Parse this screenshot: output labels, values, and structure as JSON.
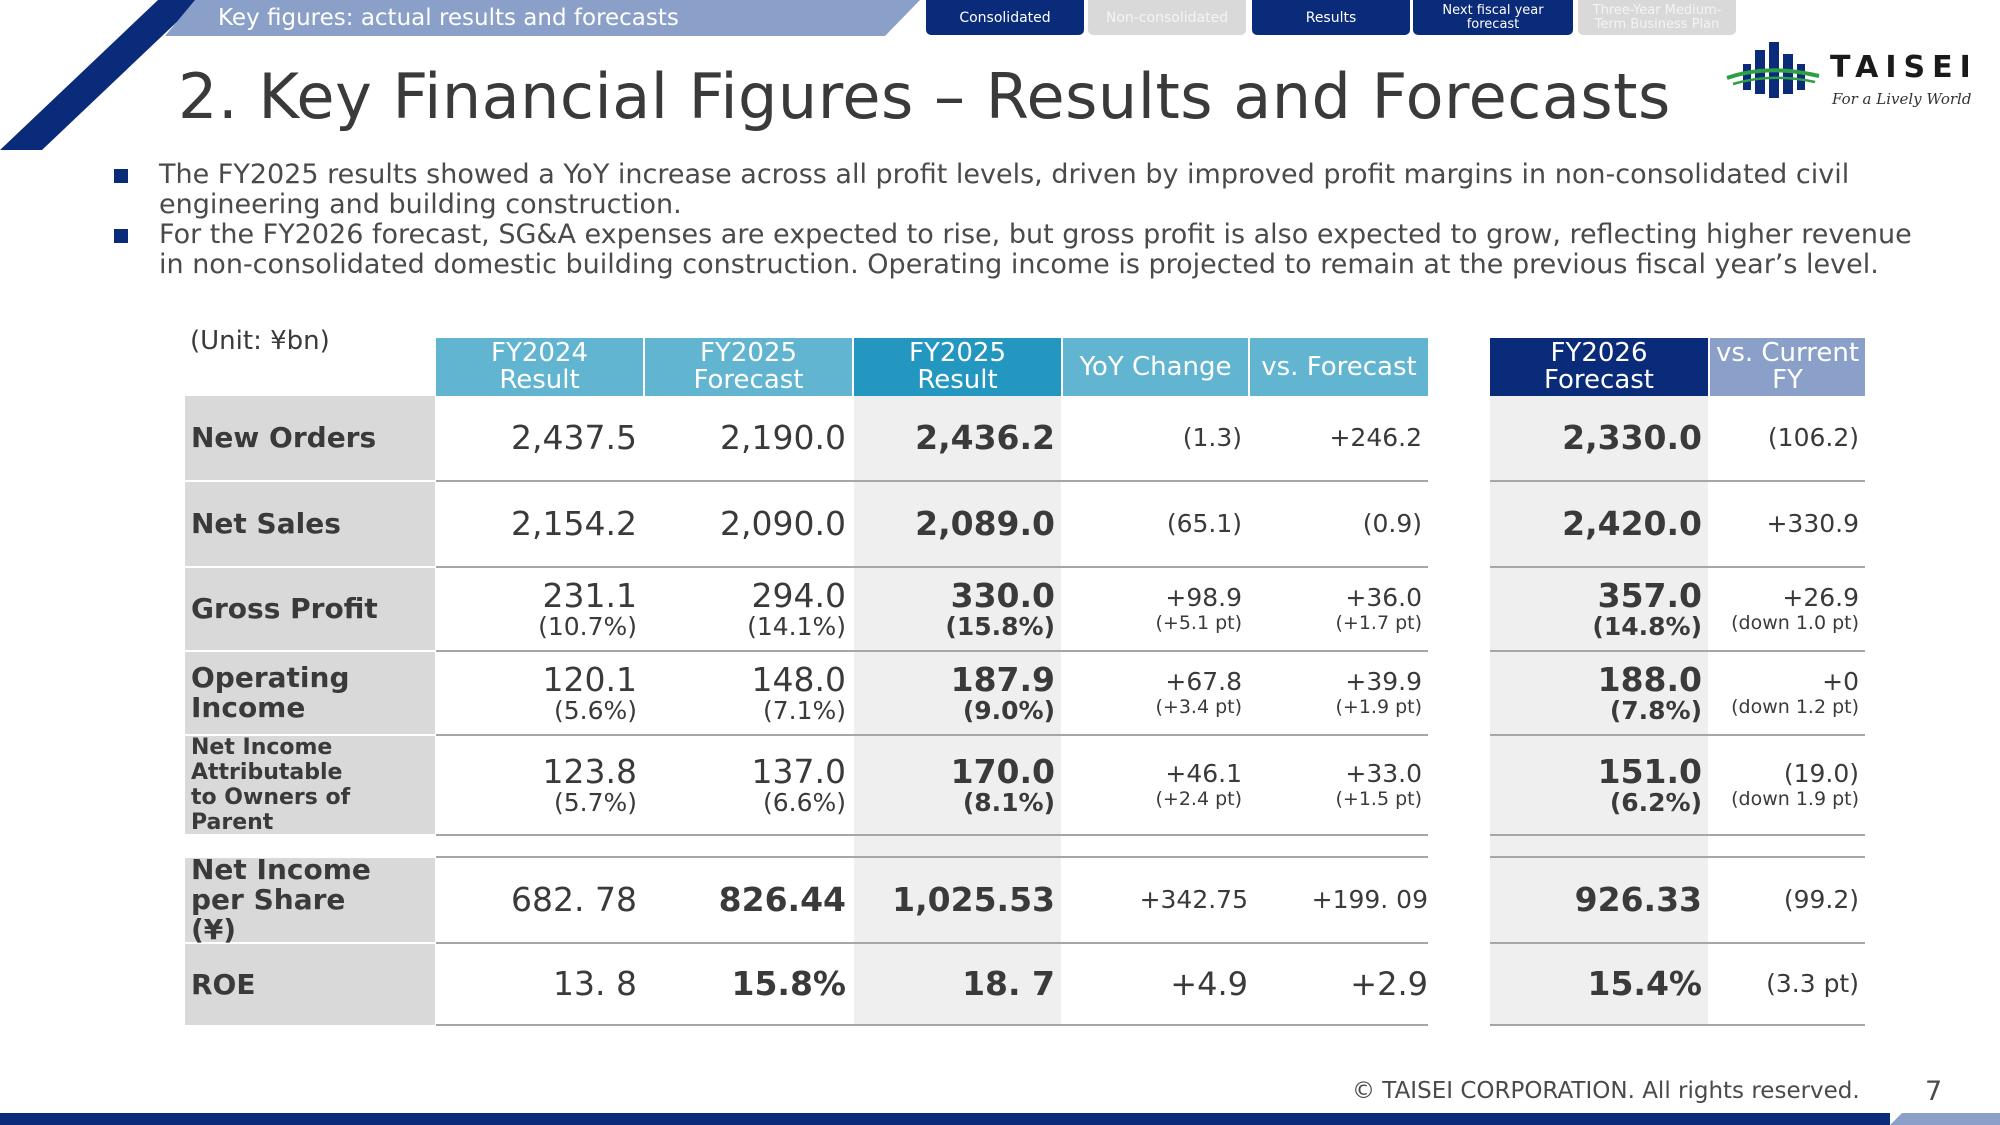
{
  "header": {
    "section_label": "Key figures: actual results and forecasts",
    "tabs": [
      {
        "label": "Consolidated",
        "active": true
      },
      {
        "label": "Non-consolidated",
        "active": false
      },
      {
        "label": "Results",
        "active": true
      },
      {
        "label": "Next fiscal year forecast",
        "active": true
      },
      {
        "label": "Three-Year Medium-Term Business Plan",
        "active": false
      }
    ]
  },
  "title": "2. Key Financial Figures – Results and Forecasts",
  "logo": {
    "word": "TAISEI",
    "tagline": "For a Lively World"
  },
  "bullets": [
    "The FY2025 results showed a YoY increase across all profit levels, driven by improved profit margins in non-consolidated civil engineering and building construction.",
    "For the FY2026 forecast, SG&A expenses are expected to rise, but gross profit is also expected to grow, reflecting higher revenue in non-consolidated domestic building construction. Operating income is projected to remain at the previous fiscal year’s level."
  ],
  "table": {
    "unit": "(Unit: ¥bn)",
    "columns": [
      {
        "line1": "FY2024",
        "line2": "Result"
      },
      {
        "line1": "FY2025",
        "line2": "Forecast"
      },
      {
        "line1": "FY2025",
        "line2": "Result"
      },
      {
        "line1": "YoY Change",
        "line2": ""
      },
      {
        "line1": "vs. Forecast",
        "line2": ""
      },
      {
        "line1": "FY2026",
        "line2": "Forecast"
      },
      {
        "line1": "vs. Current",
        "line2": "FY"
      }
    ],
    "rows": [
      {
        "label": "New Orders",
        "cells": [
          [
            "2,437.5",
            ""
          ],
          [
            "2,190.0",
            ""
          ],
          [
            "2,436.2",
            ""
          ],
          [
            "(1.3)",
            ""
          ],
          [
            "+246.2",
            ""
          ],
          [
            "2,330.0",
            ""
          ],
          [
            "(106.2)",
            ""
          ]
        ]
      },
      {
        "label": "Net Sales",
        "cells": [
          [
            "2,154.2",
            ""
          ],
          [
            "2,090.0",
            ""
          ],
          [
            "2,089.0",
            ""
          ],
          [
            "(65.1)",
            ""
          ],
          [
            "(0.9)",
            ""
          ],
          [
            "2,420.0",
            ""
          ],
          [
            "+330.9",
            ""
          ]
        ]
      },
      {
        "label": "Gross Profit",
        "cells": [
          [
            "231.1",
            "(10.7%)"
          ],
          [
            "294.0",
            "(14.1%)"
          ],
          [
            "330.0",
            "(15.8%)"
          ],
          [
            "+98.9",
            "(+5.1 pt)"
          ],
          [
            "+36.0",
            "(+1.7 pt)"
          ],
          [
            "357.0",
            "(14.8%)"
          ],
          [
            "+26.9",
            "(down 1.0 pt)"
          ]
        ]
      },
      {
        "label": "Operating Income",
        "cells": [
          [
            "120.1",
            "(5.6%)"
          ],
          [
            "148.0",
            "(7.1%)"
          ],
          [
            "187.9",
            "(9.0%)"
          ],
          [
            "+67.8",
            "(+3.4 pt)"
          ],
          [
            "+39.9",
            "(+1.9 pt)"
          ],
          [
            "188.0",
            "(7.8%)"
          ],
          [
            "+0",
            "(down 1.2 pt)"
          ]
        ]
      },
      {
        "label": "Net Income Attributable to Owners of Parent",
        "cells": [
          [
            "123.8",
            "(5.7%)"
          ],
          [
            "137.0",
            "(6.6%)"
          ],
          [
            "170.0",
            "(8.1%)"
          ],
          [
            "+46.1",
            "(+2.4 pt)"
          ],
          [
            "+33.0",
            "(+1.5 pt)"
          ],
          [
            "151.0",
            "(6.2%)"
          ],
          [
            "(19.0)",
            "(down 1.9 pt)"
          ]
        ]
      },
      {
        "label": "Net Income per Share (¥)",
        "cells": [
          [
            "682. 78",
            ""
          ],
          [
            "826.44",
            ""
          ],
          [
            "1,025.53",
            ""
          ],
          [
            "+342.75",
            ""
          ],
          [
            "+199. 09",
            ""
          ],
          [
            "926.33",
            ""
          ],
          [
            "(99.2)",
            ""
          ]
        ]
      },
      {
        "label": "ROE",
        "cells": [
          [
            "13. 8",
            ""
          ],
          [
            "15.8%",
            ""
          ],
          [
            "18. 7",
            ""
          ],
          [
            "+4.9",
            ""
          ],
          [
            "+2.9",
            ""
          ],
          [
            "15.4%",
            ""
          ],
          [
            "(3.3 pt)",
            ""
          ]
        ]
      }
    ]
  },
  "footer": {
    "copyright": "© TAISEI CORPORATION. All rights reserved.",
    "page": "7"
  },
  "colors": {
    "navy": "#0a2a7a",
    "light_blue": "#62b5d0",
    "mid_blue": "#2497c1",
    "grey_blue": "#8aa0c8",
    "row_grey": "#d9d9d9"
  }
}
